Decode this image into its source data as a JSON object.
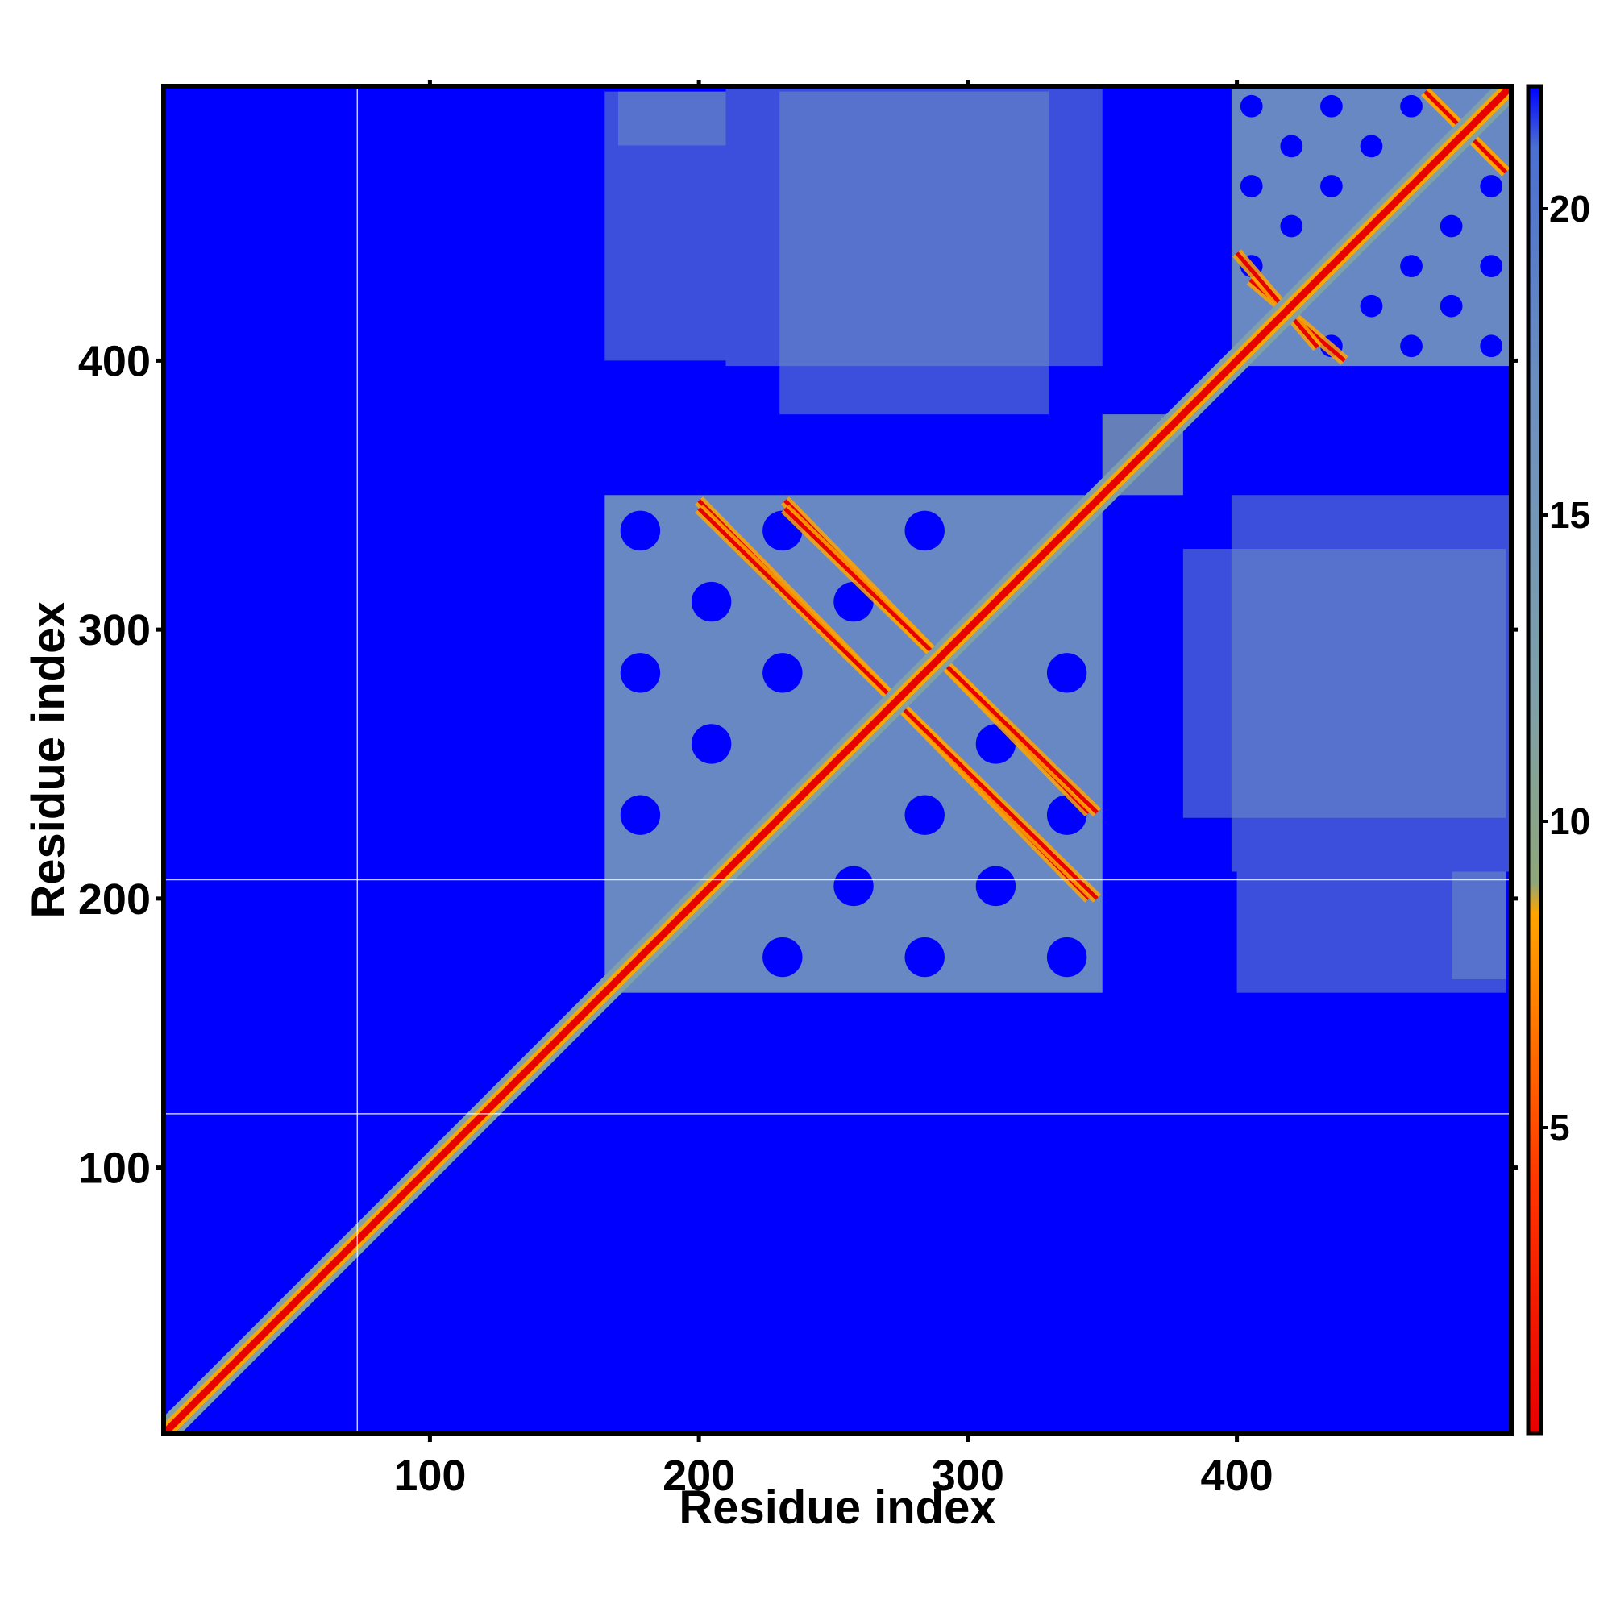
{
  "chart_data": {
    "type": "heatmap",
    "title": "",
    "xlabel": "Residue index",
    "ylabel": "Residue index",
    "xlim": [
      1,
      502
    ],
    "ylim": [
      1,
      502
    ],
    "x_ticks": [
      100,
      200,
      300,
      400
    ],
    "y_ticks": [
      100,
      200,
      300,
      400
    ],
    "colorbar": {
      "ticks": [
        5,
        10,
        15,
        20
      ],
      "range": [
        0,
        22
      ],
      "colors": [
        {
          "value": 0,
          "color": "#e60000"
        },
        {
          "value": 4,
          "color": "#ff3300"
        },
        {
          "value": 8.5,
          "color": "#ffa500"
        },
        {
          "value": 9,
          "color": "#8fa67a"
        },
        {
          "value": 12,
          "color": "#7fa0a8"
        },
        {
          "value": 17,
          "color": "#6d8fc0"
        },
        {
          "value": 21,
          "color": "#4a6fd0"
        },
        {
          "value": 22,
          "color": "#0000ff"
        }
      ]
    },
    "background_color": "#0000ff",
    "diagonal_color": "#e60000",
    "domains": [
      {
        "name": "",
        "start": 165,
        "end": 350
      },
      {
        "name": "",
        "start": 398,
        "end": 502
      }
    ],
    "contact_regions": [
      {
        "x": [
          165,
          210
        ],
        "y": [
          400,
          500
        ],
        "level": 15
      },
      {
        "x": [
          230,
          330
        ],
        "y": [
          380,
          500
        ],
        "level": 17
      },
      {
        "x": [
          398,
          502
        ],
        "y": [
          210,
          350
        ],
        "level": 17
      },
      {
        "x": [
          480,
          500
        ],
        "y": [
          170,
          210
        ],
        "level": 14
      },
      {
        "x": [
          350,
          380
        ],
        "y": [
          350,
          380
        ],
        "level": 10
      }
    ],
    "antiparallel_strands": [
      {
        "from": [
          200,
          348
        ],
        "to": [
          345,
          200
        ]
      },
      {
        "from": [
          232,
          348
        ],
        "to": [
          345,
          232
        ]
      },
      {
        "from": [
          405,
          430
        ],
        "to": [
          440,
          400
        ]
      },
      {
        "from": [
          470,
          500
        ],
        "to": [
          500,
          470
        ]
      }
    ],
    "grid_lines": {
      "vertical_at": [
        73
      ],
      "horizontal_at": [
        120,
        207
      ]
    }
  }
}
